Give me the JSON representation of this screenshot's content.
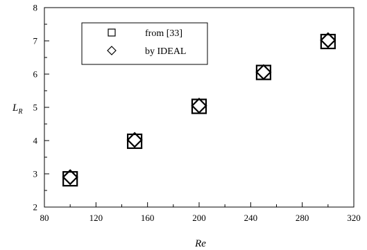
{
  "chart_data": {
    "type": "scatter",
    "xlabel": "Re",
    "ylabel": "L",
    "ylabel_subscript": "R",
    "xlim": [
      80,
      320
    ],
    "ylim": [
      2,
      8
    ],
    "x_ticks": [
      "80",
      "120",
      "160",
      "200",
      "240",
      "280",
      "320"
    ],
    "y_ticks": [
      "2",
      "3",
      "4",
      "5",
      "6",
      "7",
      "8"
    ],
    "grid": false,
    "legend_position": "top-left",
    "series": [
      {
        "name": "from [33]",
        "marker": "square",
        "x": [
          100,
          150,
          200,
          250,
          300
        ],
        "y": [
          2.85,
          3.98,
          5.03,
          6.05,
          6.98
        ]
      },
      {
        "name": "by IDEAL",
        "marker": "diamond",
        "x": [
          100,
          150,
          200,
          250,
          300
        ],
        "y": [
          2.9,
          4.02,
          5.05,
          6.06,
          7.02
        ]
      }
    ]
  }
}
